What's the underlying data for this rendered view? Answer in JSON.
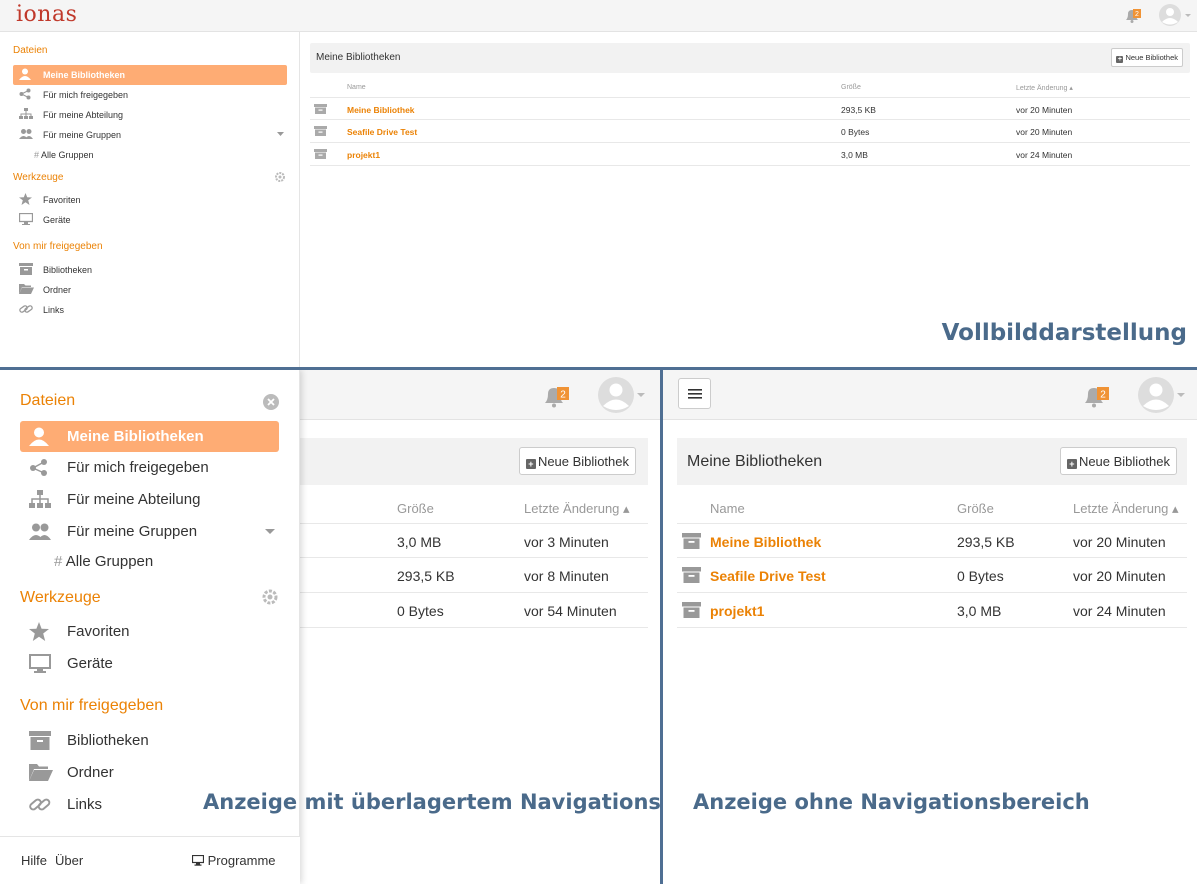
{
  "full": {
    "logo": "ionas",
    "notification_count": "2",
    "sidebar": {
      "section_files": "Dateien",
      "my_libraries": "Meine Bibliotheken",
      "shared_with_me": "Für mich freigegeben",
      "my_department": "Für meine Abteilung",
      "my_groups": "Für meine Gruppen",
      "all_groups": "Alle Gruppen",
      "section_tools": "Werkzeuge",
      "favorites": "Favoriten",
      "devices": "Geräte",
      "section_shared_by_me": "Von mir freigegeben",
      "libraries": "Bibliotheken",
      "folders": "Ordner",
      "links": "Links"
    },
    "main": {
      "title": "Meine Bibliotheken",
      "new_library": "Neue Bibliothek",
      "columns": {
        "name": "Name",
        "size": "Größe",
        "modified": "Letzte Änderung ▴"
      },
      "rows": [
        {
          "name": "Meine Bibliothek",
          "size": "293,5 KB",
          "modified": "vor 20 Minuten"
        },
        {
          "name": "Seafile Drive Test",
          "size": "0 Bytes",
          "modified": "vor 20 Minuten"
        },
        {
          "name": "projekt1",
          "size": "3,0 MB",
          "modified": "vor 24 Minuten"
        }
      ]
    }
  },
  "captions": {
    "fullscreen": "Vollbilddarstellung",
    "overlay": "Anzeige mit überlagertem Navigationsbereich",
    "no_nav": "Anzeige ohne Navigationsbereich"
  },
  "overlay_view": {
    "notification_count": "2",
    "sidebar": {
      "section_files": "Dateien",
      "my_libraries": "Meine Bibliotheken",
      "shared_with_me": "Für mich freigegeben",
      "my_department": "Für meine Abteilung",
      "my_groups": "Für meine Gruppen",
      "all_groups": "Alle Gruppen",
      "section_tools": "Werkzeuge",
      "favorites": "Favoriten",
      "devices": "Geräte",
      "section_shared_by_me": "Von mir freigegeben",
      "libraries": "Bibliotheken",
      "folders": "Ordner",
      "links": "Links",
      "footer_help": "Hilfe",
      "footer_about": "Über",
      "footer_programs": "Programme"
    },
    "main": {
      "new_library": "Neue Bibliothek",
      "columns": {
        "size": "Größe",
        "modified": "Letzte Änderung ▴"
      },
      "rows": [
        {
          "size": "3,0 MB",
          "modified": "vor 3 Minuten"
        },
        {
          "size": "293,5 KB",
          "modified": "vor 8 Minuten"
        },
        {
          "size": "0 Bytes",
          "modified": "vor 54 Minuten"
        }
      ]
    }
  },
  "nonav_view": {
    "notification_count": "2",
    "main": {
      "title": "Meine Bibliotheken",
      "new_library": "Neue Bibliothek",
      "columns": {
        "name": "Name",
        "size": "Größe",
        "modified": "Letzte Änderung ▴"
      },
      "rows": [
        {
          "name": "Meine Bibliothek",
          "size": "293,5 KB",
          "modified": "vor 20 Minuten"
        },
        {
          "name": "Seafile Drive Test",
          "size": "0 Bytes",
          "modified": "vor 20 Minuten"
        },
        {
          "name": "projekt1",
          "size": "3,0 MB",
          "modified": "vor 24 Minuten"
        }
      ]
    }
  },
  "colors": {
    "accent": "#eb8205",
    "active_bg": "#feac74",
    "caption": "#4a6a8a",
    "divider": "#4f6f93"
  }
}
